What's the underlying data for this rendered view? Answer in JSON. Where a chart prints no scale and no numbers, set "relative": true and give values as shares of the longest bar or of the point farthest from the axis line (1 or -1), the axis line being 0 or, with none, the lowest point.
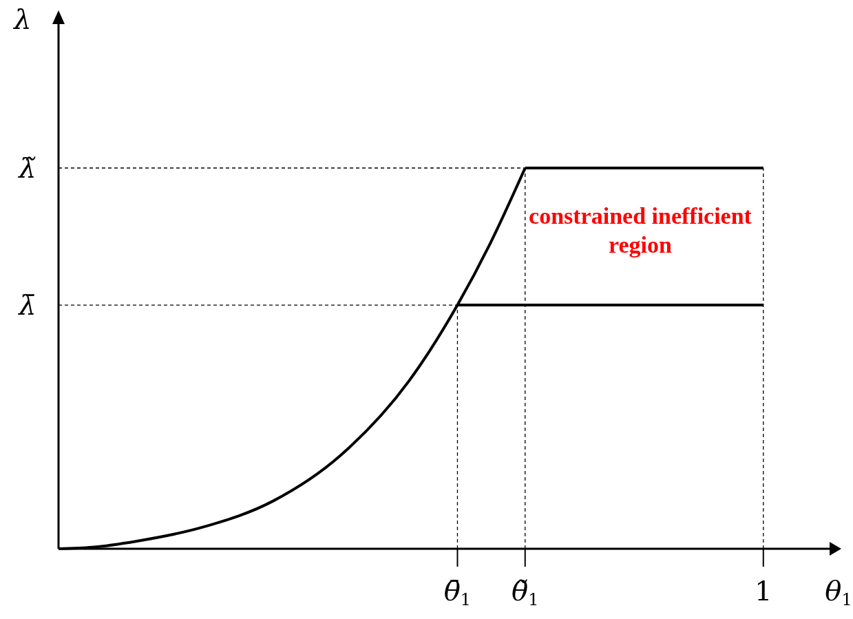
{
  "chart_data": {
    "type": "line",
    "relative": true,
    "xlabel": "θ$_{1}$",
    "ylabel": "λ",
    "xlim": [
      0,
      1.094
    ],
    "xticks": [
      {
        "value": 0.566,
        "label": "θ̄$_{1}$"
      },
      {
        "value": 0.662,
        "label": "θ̃$_{1}$"
      },
      1
    ],
    "series": [
      {
        "color": "#000000",
        "x": [
          0,
          0.048,
          0.111,
          0.207,
          0.304,
          0.4,
          0.497,
          0.566,
          0.612,
          0.662
        ],
        "values": [
          0,
          0.004,
          0.02,
          0.058,
          0.125,
          0.245,
          0.44,
          0.64,
          0.8,
          1
        ]
      },
      {
        "color": "#000000",
        "x": [
          0.662,
          1
        ],
        "values": [
          1,
          1
        ]
      },
      {
        "color": "#000000",
        "x": [
          0.566,
          1
        ],
        "values": [
          0.64,
          0.64
        ]
      }
    ],
    "ref_lines": [
      {
        "axis": "y",
        "value": 1,
        "label": "λ̃",
        "line_style": "dashed"
      },
      {
        "axis": "y",
        "value": 0.64,
        "label": "λ̄",
        "line_style": "dashed"
      },
      {
        "axis": "x",
        "value": 0.566,
        "line_style": "dashed"
      },
      {
        "axis": "x",
        "value": 0.662,
        "line_style": "dashed"
      },
      {
        "axis": "x",
        "value": 1,
        "line_style": "dashed"
      }
    ],
    "annotations": [
      "constrained inefficient region"
    ],
    "grid": false,
    "marker": "none",
    "line_style": "solid"
  }
}
